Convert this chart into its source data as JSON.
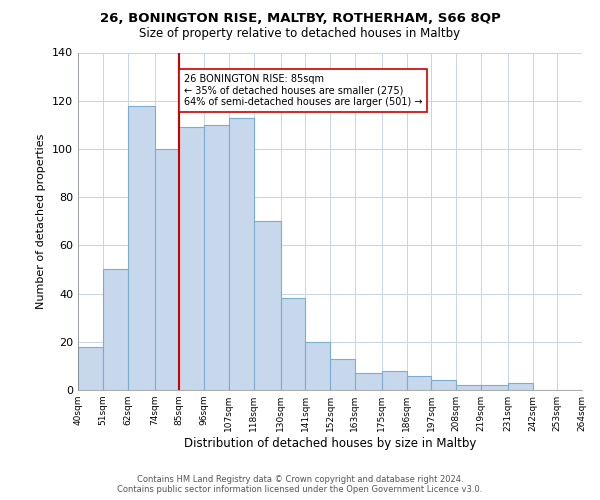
{
  "title1": "26, BONINGTON RISE, MALTBY, ROTHERHAM, S66 8QP",
  "title2": "Size of property relative to detached houses in Maltby",
  "xlabel": "Distribution of detached houses by size in Maltby",
  "ylabel": "Number of detached properties",
  "bar_edges": [
    40,
    51,
    62,
    74,
    85,
    96,
    107,
    118,
    130,
    141,
    152,
    163,
    175,
    186,
    197,
    208,
    219,
    231,
    242,
    253,
    264
  ],
  "bar_heights": [
    18,
    50,
    118,
    100,
    109,
    110,
    113,
    70,
    38,
    20,
    13,
    7,
    8,
    6,
    4,
    2,
    2,
    3,
    0,
    0
  ],
  "tick_labels": [
    "40sqm",
    "51sqm",
    "62sqm",
    "74sqm",
    "85sqm",
    "96sqm",
    "107sqm",
    "118sqm",
    "130sqm",
    "141sqm",
    "152sqm",
    "163sqm",
    "175sqm",
    "186sqm",
    "197sqm",
    "208sqm",
    "219sqm",
    "231sqm",
    "242sqm",
    "253sqm",
    "264sqm"
  ],
  "bar_color": "#c8d8ec",
  "bar_edge_color": "#7aaed0",
  "vline_x": 85,
  "vline_color": "#cc0000",
  "annotation_line1": "26 BONINGTON RISE: 85sqm",
  "annotation_line2": "← 35% of detached houses are smaller (275)",
  "annotation_line3": "64% of semi-detached houses are larger (501) →",
  "annotation_box_color": "#ffffff",
  "annotation_box_edge": "#cc0000",
  "ylim": [
    0,
    140
  ],
  "yticks": [
    0,
    20,
    40,
    60,
    80,
    100,
    120,
    140
  ],
  "footer1": "Contains HM Land Registry data © Crown copyright and database right 2024.",
  "footer2": "Contains public sector information licensed under the Open Government Licence v3.0.",
  "background_color": "#ffffff",
  "grid_color": "#c8d4e0"
}
